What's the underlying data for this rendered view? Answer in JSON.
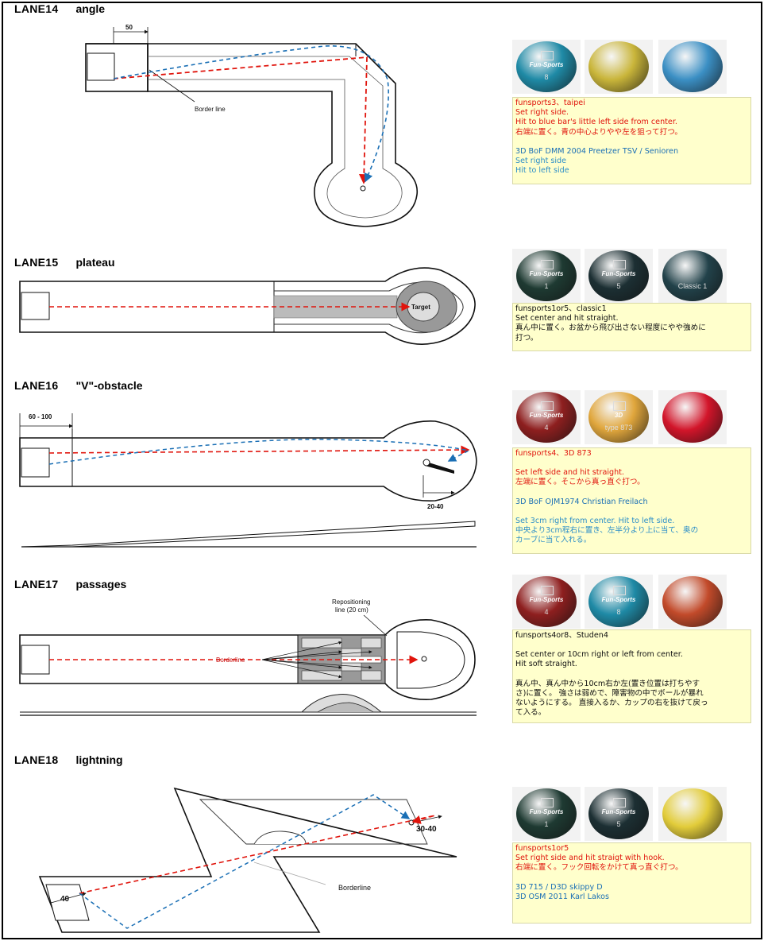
{
  "lanes": [
    {
      "id": "LANE14",
      "name": "angle",
      "labels": {
        "dim": "50",
        "border": "Border line"
      },
      "balls": [
        {
          "color": "#1f8aa6",
          "logo": "Fun-Sports",
          "num": "8"
        },
        {
          "color": "#c9b53a",
          "logo": "",
          "num": ""
        },
        {
          "color": "#3b8fc4",
          "logo": "",
          "num": ""
        }
      ],
      "note": [
        {
          "t": "funsports3、taipei",
          "c": "red"
        },
        {
          "t": "Set right side.",
          "c": "red"
        },
        {
          "t": "Hit to blue bar's little left side from center.",
          "c": "red"
        },
        {
          "t": "右端に置く。青の中心よりやや左を狙って打つ。",
          "c": "red"
        },
        {
          "t": "",
          "c": "blk"
        },
        {
          "t": "3D BoF DMM 2004 Preetzer TSV / Senioren",
          "c": "blu"
        },
        {
          "t": "Set right side",
          "c": "blu2"
        },
        {
          "t": "Hit to left side",
          "c": "blu2"
        }
      ]
    },
    {
      "id": "LANE15",
      "name": "plateau",
      "labels": {
        "target": "Target"
      },
      "balls": [
        {
          "color": "#1e3a32",
          "logo": "Fun-Sports",
          "num": "1"
        },
        {
          "color": "#1c2f33",
          "logo": "Fun-Sports",
          "num": "5"
        },
        {
          "color": "#22424a",
          "logo": "",
          "num": "Classic 1"
        }
      ],
      "note": [
        {
          "t": "funsports1or5、classic1",
          "c": "blk"
        },
        {
          "t": "Set center and hit straight.",
          "c": "blk"
        },
        {
          "t": "真ん中に置く。お盆から飛び出さない程度にやや強めに",
          "c": "blk"
        },
        {
          "t": "打つ。",
          "c": "blk"
        }
      ]
    },
    {
      "id": "LANE16",
      "name": "\"V\"-obstacle",
      "labels": {
        "dim1": "60 - 100",
        "dim2": "20-40"
      },
      "balls": [
        {
          "color": "#8e1f1f",
          "logo": "Fun-Sports",
          "num": "4"
        },
        {
          "color": "#e0a63c",
          "logo": "3D",
          "num": "type 873"
        },
        {
          "color": "#d2152a",
          "logo": "",
          "num": ""
        }
      ],
      "note": [
        {
          "t": "funsports4、3D 873",
          "c": "red"
        },
        {
          "t": "",
          "c": "blk"
        },
        {
          "t": "Set left side and hit straight.",
          "c": "red"
        },
        {
          "t": "左端に置く。そこから真っ直ぐ打つ。",
          "c": "red"
        },
        {
          "t": "",
          "c": "blk"
        },
        {
          "t": "3D BoF OJM1974 Christian Freilach",
          "c": "blu"
        },
        {
          "t": "",
          "c": "blk"
        },
        {
          "t": "Set 3cm right from center. Hit to left side.",
          "c": "blu2"
        },
        {
          "t": "中央より3cm程右に置き、左半分より上に当て、奥の",
          "c": "blu2"
        },
        {
          "t": "カーブに当て入れる。",
          "c": "blu2"
        }
      ]
    },
    {
      "id": "LANE17",
      "name": "passages",
      "labels": {
        "repos1": "Repositioning",
        "repos2": "line (20 cm)",
        "border": "Borderline"
      },
      "balls": [
        {
          "color": "#8e1f1f",
          "logo": "Fun-Sports",
          "num": "4"
        },
        {
          "color": "#1f8aa6",
          "logo": "Fun-Sports",
          "num": "8"
        },
        {
          "color": "#c24a2a",
          "logo": "",
          "num": ""
        }
      ],
      "note": [
        {
          "t": "funsports4or8、Studen4",
          "c": "blk"
        },
        {
          "t": "",
          "c": "blk"
        },
        {
          "t": "Set center or 10cm right or left from center.",
          "c": "blk"
        },
        {
          "t": "Hit soft straight.",
          "c": "blk"
        },
        {
          "t": "",
          "c": "blk"
        },
        {
          "t": "真ん中、真ん中から10cm右か左(置き位置は打ちやす",
          "c": "blk"
        },
        {
          "t": "さ)に置く。 強さは弱めで、障害物の中でボールが暴れ",
          "c": "blk"
        },
        {
          "t": "ないようにする。 直接入るか、カップの右を抜けて戻っ",
          "c": "blk"
        },
        {
          "t": "て入る。",
          "c": "blk"
        }
      ]
    },
    {
      "id": "LANE18",
      "name": "lightning",
      "labels": {
        "dim1": "40",
        "dim2": "30-40",
        "border": "Borderline"
      },
      "balls": [
        {
          "color": "#1e3a32",
          "logo": "Fun-Sports",
          "num": "1"
        },
        {
          "color": "#1c2f33",
          "logo": "Fun-Sports",
          "num": "5"
        },
        {
          "color": "#e2cc3a",
          "logo": "",
          "num": ""
        }
      ],
      "note": [
        {
          "t": "funsports1or5",
          "c": "red"
        },
        {
          "t": "Set right side and hit straigt with hook.",
          "c": "red"
        },
        {
          "t": "右端に置く。フック回転をかけて真っ直ぐ打つ。",
          "c": "red"
        },
        {
          "t": "",
          "c": "blk"
        },
        {
          "t": "3D 715 / D3D skippy D",
          "c": "blu"
        },
        {
          "t": "3D OSM 2011  Karl Lakos",
          "c": "blu"
        }
      ]
    }
  ]
}
